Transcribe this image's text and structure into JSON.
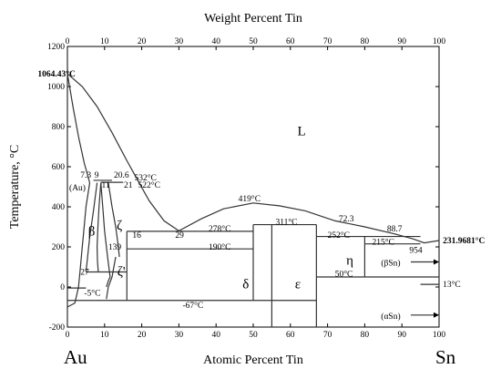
{
  "chart_data": {
    "type": "phase-diagram",
    "top_axis": {
      "label": "Weight Percent Tin",
      "ticks": [
        "0",
        "10",
        "20",
        "30",
        "40",
        "50",
        "60",
        "70",
        "80",
        "90",
        "100"
      ]
    },
    "xlabel": "Atomic Percent Tin",
    "ylabel": "Temperature, °C",
    "xlim": [
      0,
      100
    ],
    "ylim": [
      -200,
      1200
    ],
    "x_ticks": [
      "0",
      "10",
      "20",
      "30",
      "40",
      "50",
      "60",
      "70",
      "80",
      "90",
      "100"
    ],
    "y_ticks": [
      "-200",
      "0",
      "200",
      "400",
      "600",
      "800",
      "1000",
      "1200"
    ],
    "end_left": "Au",
    "end_right": "Sn",
    "curves": [
      {
        "name": "liquidus-au",
        "points": [
          [
            0,
            1064.43
          ],
          [
            4,
            1000
          ],
          [
            8,
            900
          ],
          [
            12,
            770
          ],
          [
            16,
            630
          ],
          [
            19,
            530
          ],
          [
            22,
            430
          ],
          [
            26,
            330
          ],
          [
            30,
            280
          ]
        ]
      },
      {
        "name": "solidus-au",
        "points": [
          [
            0,
            1064.43
          ],
          [
            1.5,
            900
          ],
          [
            3,
            750
          ],
          [
            4.5,
            620
          ],
          [
            6,
            520
          ]
        ]
      },
      {
        "name": "liquidus-mid",
        "points": [
          [
            30,
            280
          ],
          [
            36,
            340
          ],
          [
            42,
            390
          ],
          [
            50,
            419
          ],
          [
            57,
            405
          ],
          [
            64,
            380
          ],
          [
            72,
            330
          ],
          [
            80,
            300
          ],
          [
            88,
            265
          ],
          [
            93,
            240
          ],
          [
            96,
            220
          ],
          [
            100,
            231.97
          ]
        ]
      },
      {
        "name": "au-solvus",
        "points": [
          [
            6,
            520
          ],
          [
            5,
            400
          ],
          [
            4.5,
            300
          ],
          [
            4,
            200
          ],
          [
            3.5,
            100
          ],
          [
            3,
            0
          ],
          [
            2,
            -80
          ],
          [
            0,
            -100
          ]
        ]
      },
      {
        "name": "beta-left",
        "points": [
          [
            8,
            520
          ],
          [
            7,
            380
          ],
          [
            6,
            250
          ],
          [
            5.5,
            160
          ],
          [
            5,
            75
          ]
        ]
      },
      {
        "name": "beta-right",
        "points": [
          [
            9,
            520
          ],
          [
            8.5,
            400
          ],
          [
            8.2,
            300
          ],
          [
            8,
            200
          ],
          [
            8.1,
            130
          ],
          [
            8.3,
            75
          ]
        ]
      },
      {
        "name": "zeta-left",
        "points": [
          [
            9,
            520
          ],
          [
            9.5,
            400
          ],
          [
            10,
            280
          ],
          [
            10.8,
            150
          ],
          [
            11.5,
            50
          ],
          [
            11,
            30
          ],
          [
            10.5,
            0
          ]
        ]
      },
      {
        "name": "zeta-right",
        "points": [
          [
            11,
            520
          ],
          [
            12,
            400
          ],
          [
            13,
            300
          ],
          [
            13.5,
            230
          ],
          [
            14,
            150
          ]
        ]
      },
      {
        "name": "zeta-prime-left",
        "points": [
          [
            13,
            150
          ],
          [
            12,
            50
          ],
          [
            11,
            0
          ],
          [
            10.5,
            -60
          ]
        ]
      }
    ],
    "isotherms": [
      {
        "x": [
          7,
          12
        ],
        "y": 532
      },
      {
        "x": [
          9,
          15
        ],
        "y": 522
      },
      {
        "x": [
          16,
          50
        ],
        "y": 278
      },
      {
        "x": [
          16,
          50
        ],
        "y": 190
      },
      {
        "x": [
          50,
          67
        ],
        "y": 311
      },
      {
        "x": [
          67,
          95
        ],
        "y": 252
      },
      {
        "x": [
          80,
          95
        ],
        "y": 215
      },
      {
        "x": [
          67,
          100
        ],
        "y": 50
      },
      {
        "x": [
          0,
          67
        ],
        "y": -67
      },
      {
        "x": [
          5,
          16
        ],
        "y": 75
      },
      {
        "x": [
          0,
          5
        ],
        "y": -5
      },
      {
        "x": [
          95,
          100
        ],
        "y": 13
      }
    ],
    "verticals": [
      {
        "x": 16,
        "y": [
          -67,
          278
        ]
      },
      {
        "x": 50,
        "y": [
          -67,
          311
        ]
      },
      {
        "x": 55,
        "y": [
          -200,
          311
        ]
      },
      {
        "x": 67,
        "y": [
          -200,
          311
        ]
      },
      {
        "x": 80,
        "y": [
          50,
          252
        ]
      }
    ],
    "annotations": [
      {
        "text": "1064.43°C",
        "x": -8,
        "y": 1064,
        "bold": true
      },
      {
        "text": "7.3",
        "x": 3.5,
        "y": 560
      },
      {
        "text": "9",
        "x": 7.3,
        "y": 560
      },
      {
        "text": "20.6",
        "x": 12.5,
        "y": 560
      },
      {
        "text": "532°C",
        "x": 18,
        "y": 545
      },
      {
        "text": "(Au)",
        "x": 0.5,
        "y": 495
      },
      {
        "text": "11",
        "x": 9.2,
        "y": 510
      },
      {
        "text": "21",
        "x": 15.2,
        "y": 510
      },
      {
        "text": "522°C",
        "x": 19,
        "y": 510
      },
      {
        "text": "419°C",
        "x": 46,
        "y": 440
      },
      {
        "text": "311°C",
        "x": 56,
        "y": 325
      },
      {
        "text": "72.3",
        "x": 73,
        "y": 340
      },
      {
        "text": "88.7",
        "x": 86,
        "y": 290
      },
      {
        "text": "278°C",
        "x": 38,
        "y": 290
      },
      {
        "text": "252°C",
        "x": 70,
        "y": 260
      },
      {
        "text": "215°C",
        "x": 82,
        "y": 225
      },
      {
        "text": "231.9681°C",
        "x": 101,
        "y": 231,
        "bold": true
      },
      {
        "text": "16",
        "x": 17.5,
        "y": 260
      },
      {
        "text": "29",
        "x": 29,
        "y": 260
      },
      {
        "text": "139",
        "x": 11,
        "y": 200
      },
      {
        "text": "190°C",
        "x": 38,
        "y": 200
      },
      {
        "text": "954",
        "x": 92,
        "y": 183
      },
      {
        "text": "50°C",
        "x": 72,
        "y": 65
      },
      {
        "text": "27",
        "x": 3.5,
        "y": 75
      },
      {
        "text": "-5°C",
        "x": 4.5,
        "y": -30
      },
      {
        "text": "-67°C",
        "x": 31,
        "y": -90
      },
      {
        "text": "13°C",
        "x": 101,
        "y": 13
      }
    ],
    "phase_labels": [
      {
        "text": "L",
        "x": 63,
        "y": 780
      },
      {
        "text": "β",
        "x": 6.5,
        "y": 280
      },
      {
        "text": "ζ",
        "x": 14,
        "y": 310
      },
      {
        "text": "ζ'",
        "x": 14.5,
        "y": 80
      },
      {
        "text": "δ",
        "x": 48,
        "y": 15
      },
      {
        "text": "ε",
        "x": 62,
        "y": 15
      },
      {
        "text": "η",
        "x": 76,
        "y": 135
      }
    ],
    "arrows": [
      {
        "text": "(βSn)",
        "x_text": 87,
        "y": 125,
        "x_to": 100
      },
      {
        "text": "(αSn)",
        "x_text": 87,
        "y": -140,
        "x_to": 100
      }
    ]
  }
}
